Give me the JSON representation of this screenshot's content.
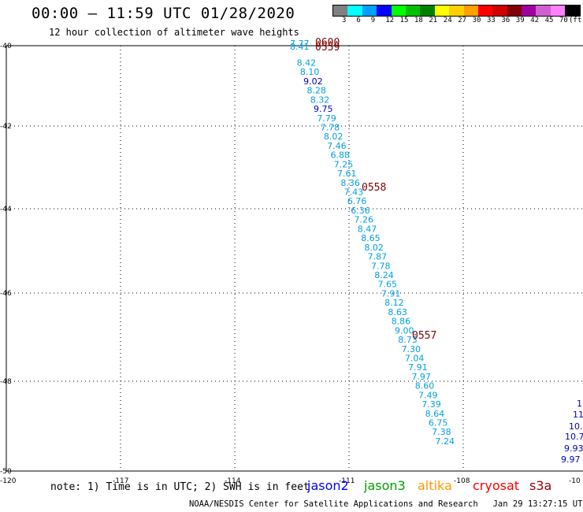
{
  "header": {
    "title": "00:00 – 11:59 UTC 01/28/2020",
    "subtitle": "12 hour collection of altimeter wave heights"
  },
  "legend": {
    "unit": "(ft)",
    "labels": [
      "3",
      "6",
      "9",
      "12",
      "15",
      "18",
      "21",
      "24",
      "27",
      "30",
      "33",
      "36",
      "39",
      "42",
      "45",
      "70"
    ],
    "colors": [
      "#808080",
      "#00ffff",
      "#00a0ff",
      "#0000ff",
      "#00ff00",
      "#00c000",
      "#008000",
      "#ffff00",
      "#ffd000",
      "#ffa000",
      "#ff0000",
      "#d00000",
      "#800000",
      "#a000a0",
      "#d060d0",
      "#ff80ff",
      "#000000"
    ]
  },
  "map": {
    "lon_ticks": [
      "-120",
      "-117",
      "-114",
      "-111",
      "-108",
      "-10"
    ],
    "lat_ticks": [
      "-40",
      "-42",
      "-44",
      "-46",
      "-48",
      "-50"
    ],
    "track_cyan": [
      "7.77",
      "8.41",
      "8.42",
      "8.10",
      "8.28",
      "8.32",
      "7.79",
      "7.78",
      "8.02",
      "7.46",
      "6.88",
      "7.25",
      "7.61",
      "8.36",
      "7.43",
      "6.76",
      "6.36",
      "7.26",
      "8.47",
      "8.65",
      "8.02",
      "7.87",
      "7.78",
      "8.24",
      "7.65",
      "7.91",
      "8.12",
      "8.63",
      "8.86",
      "9.00",
      "8.73",
      "7.30",
      "7.04",
      "7.91",
      "7.97",
      "8.60",
      "7.49",
      "7.39",
      "8.64",
      "6.75",
      "7.38",
      "7.24"
    ],
    "track_blue": [
      "9.02",
      "9.75"
    ],
    "times": [
      "0600",
      "0559",
      "0558",
      "0557"
    ],
    "right_track": [
      "1",
      "11",
      "10.",
      "10.7",
      "9.93",
      "9.97"
    ]
  },
  "footer": {
    "note": "note: 1) Time is in UTC; 2) SWH is in feet",
    "satellites": [
      {
        "name": "jason2",
        "color": "#0000ff"
      },
      {
        "name": "jason3",
        "color": "#00a000"
      },
      {
        "name": "altika",
        "color": "#ff9900"
      },
      {
        "name": "cryosat",
        "color": "#ff0000"
      },
      {
        "name": "s3a",
        "color": "#990000"
      }
    ],
    "credit": "NOAA/NESDIS Center for Satellite Applications and Research   Jan 29 13:27:15 UTC 2020"
  }
}
